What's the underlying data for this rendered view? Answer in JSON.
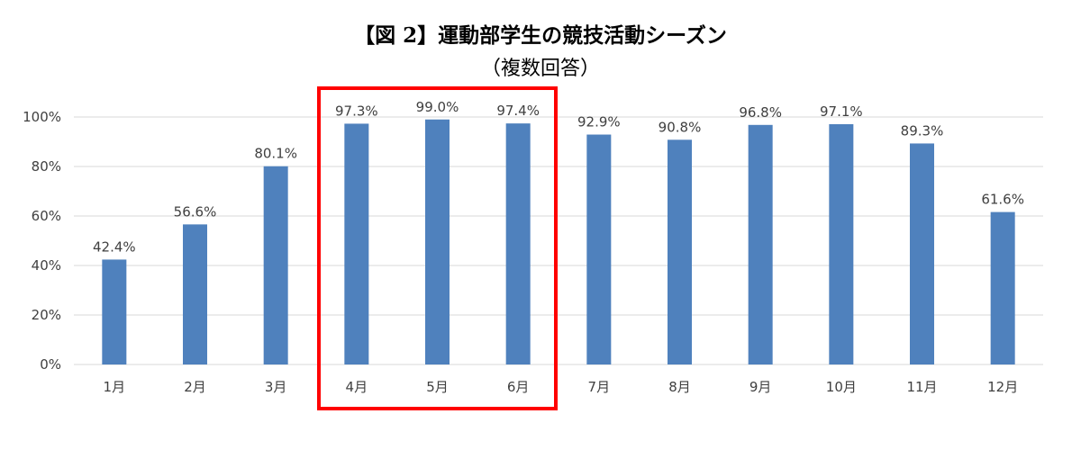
{
  "chart_data": {
    "type": "bar",
    "title": "【図 2】運動部学生の競技活動シーズン",
    "subtitle": "（複数回答）",
    "categories": [
      "1月",
      "2月",
      "3月",
      "4月",
      "5月",
      "6月",
      "7月",
      "8月",
      "9月",
      "10月",
      "11月",
      "12月"
    ],
    "values": [
      42.4,
      56.6,
      80.1,
      97.3,
      99.0,
      97.4,
      92.9,
      90.8,
      96.8,
      97.1,
      89.3,
      61.6
    ],
    "value_labels": [
      "42.4%",
      "56.6%",
      "80.1%",
      "97.3%",
      "99.0%",
      "97.4%",
      "92.9%",
      "90.8%",
      "96.8%",
      "97.1%",
      "89.3%",
      "61.6%"
    ],
    "y_ticks": [
      0,
      20,
      40,
      60,
      80,
      100
    ],
    "y_tick_labels": [
      "0%",
      "20%",
      "40%",
      "60%",
      "80%",
      "100%"
    ],
    "ylim": [
      0,
      100
    ],
    "grid": true,
    "xlabel": "",
    "ylabel": "",
    "highlight": {
      "from_category": "4月",
      "to_category": "6月"
    },
    "colors": {
      "bar": "#4f81bd",
      "grid": "#d9d9d9",
      "axis": "#d9d9d9",
      "highlight": "#ff0000",
      "text": "#404040"
    }
  }
}
